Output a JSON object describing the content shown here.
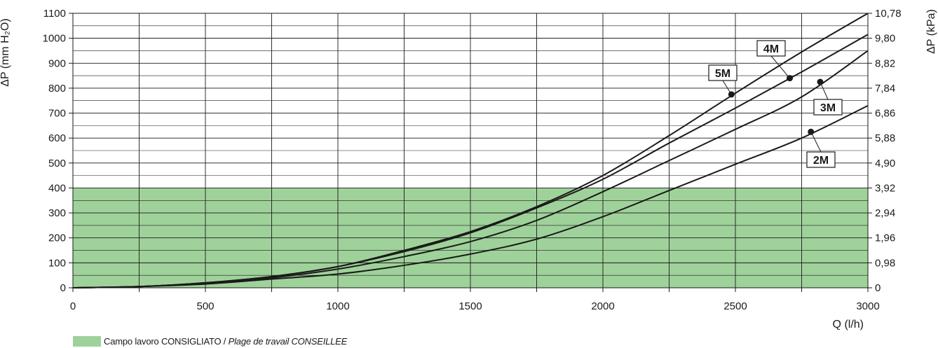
{
  "chart_data": {
    "type": "line",
    "xlabel": "Q (l/h)",
    "ylabel": "ΔP (mm H₂O)",
    "ylabel_right": "ΔP (kPa)",
    "xlim": [
      0,
      3000
    ],
    "ylim": [
      0,
      1100
    ],
    "x_ticks": [
      "0",
      "500",
      "1000",
      "1500",
      "2000",
      "2500",
      "3000"
    ],
    "y_ticks": [
      "0",
      "100",
      "200",
      "300",
      "400",
      "500",
      "600",
      "700",
      "800",
      "900",
      "1000",
      "1100"
    ],
    "y_right_ticks": [
      "0",
      "0,98",
      "1,96",
      "2,94",
      "3,92",
      "4,90",
      "5,88",
      "6,86",
      "7,84",
      "8,82",
      "9,80",
      "10,78"
    ],
    "grid": true,
    "series": [
      {
        "name": "5M",
        "x": [
          0,
          250,
          500,
          750,
          1000,
          1250,
          1500,
          1750,
          2000,
          2250,
          2500,
          2750,
          3000
        ],
        "values": [
          0,
          5,
          20,
          45,
          85,
          150,
          225,
          325,
          450,
          610,
          780,
          945,
          1100
        ]
      },
      {
        "name": "4M",
        "x": [
          0,
          250,
          500,
          750,
          1000,
          1250,
          1500,
          1750,
          2000,
          2250,
          2500,
          2750,
          3000
        ],
        "values": [
          0,
          5,
          20,
          45,
          85,
          145,
          220,
          320,
          435,
          580,
          720,
          865,
          1015
        ]
      },
      {
        "name": "3M",
        "x": [
          0,
          250,
          500,
          750,
          1000,
          1250,
          1500,
          1750,
          2000,
          2250,
          2500,
          2750,
          3000
        ],
        "values": [
          0,
          5,
          18,
          40,
          75,
          125,
          185,
          270,
          385,
          510,
          635,
          765,
          950
        ]
      },
      {
        "name": "2M",
        "x": [
          0,
          250,
          500,
          750,
          1000,
          1250,
          1500,
          1750,
          2000,
          2250,
          2500,
          2750,
          3000
        ],
        "values": [
          0,
          5,
          15,
          35,
          55,
          90,
          135,
          195,
          285,
          390,
          495,
          600,
          730
        ]
      }
    ],
    "markers": [
      {
        "series": "5M",
        "x": 2485,
        "y": 775
      },
      {
        "series": "4M",
        "x": 2705,
        "y": 840
      },
      {
        "series": "3M",
        "x": 2820,
        "y": 825
      },
      {
        "series": "2M",
        "x": 2785,
        "y": 625
      }
    ],
    "recommended_band": {
      "y_from": 0,
      "y_to": 400,
      "color": "#9fd29a"
    },
    "colors": {
      "line": "#1a1a1a",
      "grid": "#1a1a1a",
      "band": "#9fd29a"
    },
    "legend": {
      "label_it": "Campo lavoro CONSIGLIATO",
      "separator": " / ",
      "label_fr": "Plage de travail CONSEILLEE"
    }
  }
}
